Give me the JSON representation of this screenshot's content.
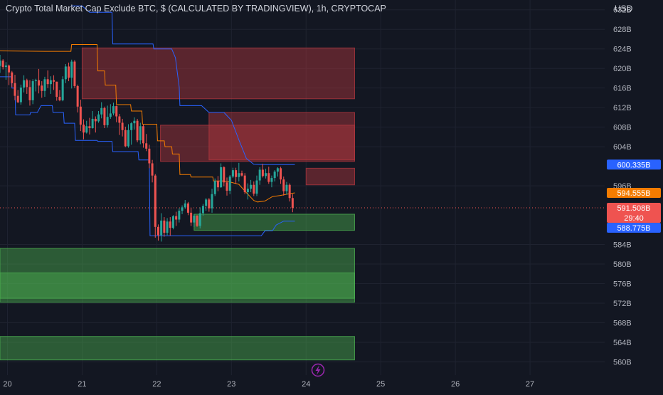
{
  "header": {
    "title": "Crypto Total Market Cap Exclude BTC, $ (CALCULATED BY TRADINGVIEW), 1h, CRYPTOCAP",
    "currency": "USD"
  },
  "colors": {
    "background": "#131722",
    "grid": "#1f2330",
    "bull": "#26a69a",
    "bear": "#ef5350",
    "red_zone": "#b2373f",
    "green_zone": "#4caf50",
    "blue_line": "#2962ff",
    "orange_line": "#f57c00"
  },
  "chart_data": {
    "type": "candlestick",
    "title": "Crypto Total Market Cap Exclude BTC, $ (CALCULATED BY TRADINGVIEW), 1h, CRYPTOCAP",
    "x_tick_labels": [
      "20",
      "21",
      "22",
      "23",
      "24",
      "25",
      "26",
      "27"
    ],
    "x_tick_values": [
      20,
      21,
      22,
      23,
      24,
      25,
      26,
      27
    ],
    "xlim": [
      19.9,
      28.0
    ],
    "y_tick_labels": [
      "632B",
      "628B",
      "624B",
      "620B",
      "616B",
      "612B",
      "608B",
      "604B",
      "596B",
      "584B",
      "580B",
      "576B",
      "572B",
      "568B",
      "564B",
      "560B"
    ],
    "y_tick_values": [
      632,
      628,
      624,
      620,
      616,
      612,
      608,
      604,
      596,
      584,
      580,
      576,
      572,
      568,
      564,
      560
    ],
    "ylim": [
      557.3,
      634.0
    ],
    "price_labels": [
      {
        "label": "600.335B",
        "value": 600.335,
        "color": "#2962ff"
      },
      {
        "label": "594.555B",
        "value": 594.555,
        "color": "#f57c00"
      },
      {
        "label": "591.508B",
        "value": 591.508,
        "color": "#ef5350",
        "countdown": "29:40"
      },
      {
        "label": "588.775B",
        "value": 588.775,
        "color": "#2962ff"
      }
    ],
    "current_price": 591.508,
    "zones": [
      {
        "kind": "supply",
        "x0": 21.0,
        "x1": 24.65,
        "y0": 613.8,
        "y1": 624.2
      },
      {
        "kind": "supply",
        "x0": 22.7,
        "x1": 24.65,
        "y0": 601.3,
        "y1": 611.0
      },
      {
        "kind": "supply",
        "x0": 22.05,
        "x1": 24.65,
        "y0": 601.0,
        "y1": 608.4
      },
      {
        "kind": "supply",
        "x0": 24.0,
        "x1": 24.65,
        "y0": 596.2,
        "y1": 599.6
      },
      {
        "kind": "demand",
        "x0": 22.5,
        "x1": 24.65,
        "y0": 586.9,
        "y1": 590.2
      },
      {
        "kind": "demand",
        "x0": 19.9,
        "x1": 24.65,
        "y0": 572.2,
        "y1": 583.2
      },
      {
        "kind": "demand",
        "x0": 19.9,
        "x1": 24.65,
        "y0": 573.0,
        "y1": 578.2
      },
      {
        "kind": "demand",
        "x0": 19.9,
        "x1": 24.65,
        "y0": 560.4,
        "y1": 565.2
      }
    ],
    "orange_line": [
      [
        19.9,
        623.6
      ],
      [
        20.5,
        623.5
      ],
      [
        20.85,
        623.5
      ],
      [
        20.86,
        624.9
      ],
      [
        21.2,
        624.9
      ],
      [
        21.21,
        619.5
      ],
      [
        21.3,
        619.5
      ],
      [
        21.31,
        616.6
      ],
      [
        21.45,
        616.6
      ],
      [
        21.46,
        612.6
      ],
      [
        21.65,
        612.6
      ],
      [
        21.66,
        611.3
      ],
      [
        21.8,
        611.3
      ],
      [
        21.81,
        608.6
      ],
      [
        22.0,
        608.6
      ],
      [
        22.01,
        605.2
      ],
      [
        22.1,
        605.2
      ],
      [
        22.11,
        604.0
      ],
      [
        22.2,
        604.0
      ],
      [
        22.21,
        602.5
      ],
      [
        22.3,
        602.5
      ],
      [
        22.31,
        598.3
      ],
      [
        22.45,
        598.3
      ],
      [
        22.46,
        597.8
      ],
      [
        22.75,
        597.8
      ],
      [
        22.76,
        597.0
      ],
      [
        22.9,
        597.0
      ],
      [
        23.0,
        596.7
      ],
      [
        23.1,
        596.3
      ],
      [
        23.2,
        594.6
      ],
      [
        23.3,
        593.0
      ],
      [
        23.35,
        592.7
      ],
      [
        23.45,
        592.9
      ],
      [
        23.55,
        593.8
      ],
      [
        23.65,
        594.0
      ],
      [
        23.75,
        594.3
      ],
      [
        23.85,
        594.555
      ]
    ],
    "blue_line": [
      [
        19.9,
        618.3
      ],
      [
        20.05,
        618.3
      ],
      [
        20.06,
        616.0
      ],
      [
        20.1,
        616.0
      ],
      [
        20.11,
        610.5
      ],
      [
        20.3,
        610.5
      ],
      [
        20.31,
        611.0
      ],
      [
        20.4,
        611.0
      ],
      [
        20.45,
        612.4
      ],
      [
        20.6,
        612.4
      ],
      [
        20.61,
        611.0
      ],
      [
        20.75,
        611.0
      ],
      [
        20.76,
        608.8
      ],
      [
        20.9,
        608.8
      ],
      [
        20.91,
        605.3
      ],
      [
        21.2,
        605.3
      ],
      [
        21.21,
        605.1
      ],
      [
        21.4,
        605.1
      ],
      [
        21.41,
        603.0
      ],
      [
        21.75,
        603.0
      ],
      [
        21.76,
        601.3
      ],
      [
        21.9,
        601.3
      ],
      [
        21.91,
        585.8
      ],
      [
        22.4,
        585.8
      ],
      [
        22.6,
        585.8
      ],
      [
        23.4,
        585.8
      ],
      [
        23.45,
        586.8
      ],
      [
        23.55,
        586.8
      ],
      [
        23.6,
        588.0
      ],
      [
        23.7,
        588.775
      ],
      [
        23.85,
        588.775
      ]
    ],
    "blue_upper_line": [
      [
        20.85,
        632.8
      ],
      [
        21.0,
        632.8
      ],
      [
        21.1,
        631.5
      ],
      [
        21.4,
        631.5
      ],
      [
        21.41,
        625.0
      ],
      [
        21.95,
        625.0
      ],
      [
        21.96,
        624.0
      ],
      [
        22.2,
        624.0
      ],
      [
        22.25,
        622.2
      ],
      [
        22.3,
        616.2
      ],
      [
        22.31,
        612.4
      ],
      [
        22.6,
        612.4
      ],
      [
        22.7,
        611.0
      ],
      [
        22.9,
        611.0
      ],
      [
        23.0,
        609.4
      ],
      [
        23.1,
        605.4
      ],
      [
        23.2,
        601.6
      ],
      [
        23.3,
        600.4
      ],
      [
        23.45,
        600.335
      ],
      [
        23.85,
        600.335
      ]
    ],
    "candles": [
      [
        19.9,
        620.5,
        622.8,
        619.1,
        621.6
      ],
      [
        19.94,
        621.6,
        621.9,
        619.8,
        620.3
      ],
      [
        19.98,
        620.3,
        621.3,
        617.7,
        620.6
      ],
      [
        20.02,
        620.6,
        620.8,
        616.6,
        619.2
      ],
      [
        20.06,
        619.2,
        619.5,
        616.2,
        617.0
      ],
      [
        20.1,
        617.0,
        618.7,
        613.5,
        614.4
      ],
      [
        20.14,
        614.4,
        615.6,
        612.9,
        613.1
      ],
      [
        20.18,
        613.1,
        616.7,
        612.6,
        616.1
      ],
      [
        20.22,
        616.1,
        618.6,
        615.1,
        617.6
      ],
      [
        20.26,
        617.6,
        617.9,
        614.8,
        616.2
      ],
      [
        20.3,
        616.2,
        617.6,
        612.4,
        613.5
      ],
      [
        20.34,
        613.5,
        617.8,
        612.7,
        617.4
      ],
      [
        20.38,
        617.4,
        617.9,
        615.3,
        617.6
      ],
      [
        20.42,
        617.6,
        619.9,
        614.9,
        616.5
      ],
      [
        20.46,
        616.5,
        617.4,
        614.0,
        615.4
      ],
      [
        20.5,
        615.4,
        618.3,
        614.2,
        617.8
      ],
      [
        20.54,
        617.8,
        619.6,
        616.0,
        616.8
      ],
      [
        20.58,
        616.8,
        618.4,
        614.8,
        617.6
      ],
      [
        20.62,
        617.6,
        618.6,
        615.6,
        617.3
      ],
      [
        20.66,
        617.3,
        617.3,
        613.4,
        614.2
      ],
      [
        20.7,
        614.2,
        615.6,
        613.3,
        613.5
      ],
      [
        20.74,
        613.5,
        618.4,
        613.3,
        617.8
      ],
      [
        20.78,
        617.8,
        620.9,
        617.0,
        620.4
      ],
      [
        20.82,
        620.4,
        621.2,
        617.4,
        618.1
      ],
      [
        20.86,
        618.1,
        621.8,
        615.9,
        621.4
      ],
      [
        20.9,
        621.4,
        621.7,
        616.0,
        616.4
      ],
      [
        20.94,
        616.4,
        616.7,
        611.0,
        612.2
      ],
      [
        20.98,
        612.2,
        613.6,
        607.2,
        608.5
      ],
      [
        21.02,
        608.5,
        609.6,
        605.5,
        606.9
      ],
      [
        21.06,
        606.9,
        609.3,
        606.7,
        608.2
      ],
      [
        21.1,
        608.2,
        609.9,
        606.5,
        607.8
      ],
      [
        21.14,
        607.8,
        611.3,
        607.7,
        609.7
      ],
      [
        21.18,
        609.7,
        610.2,
        606.9,
        609.2
      ],
      [
        21.22,
        609.2,
        611.3,
        608.9,
        610.6
      ],
      [
        21.26,
        610.6,
        613.1,
        609.8,
        611.9
      ],
      [
        21.3,
        611.9,
        612.2,
        607.8,
        608.4
      ],
      [
        21.34,
        608.4,
        612.4,
        607.9,
        610.1
      ],
      [
        21.38,
        610.1,
        612.7,
        609.7,
        610.8
      ],
      [
        21.42,
        610.8,
        613.0,
        610.4,
        612.3
      ],
      [
        21.46,
        612.3,
        612.4,
        609.0,
        610.2
      ],
      [
        21.5,
        610.2,
        610.7,
        606.4,
        608.9
      ],
      [
        21.54,
        608.9,
        609.7,
        606.1,
        607.4
      ],
      [
        21.58,
        607.4,
        608.1,
        603.9,
        604.1
      ],
      [
        21.62,
        604.1,
        608.6,
        603.8,
        607.4
      ],
      [
        21.66,
        607.4,
        609.0,
        604.4,
        608.8
      ],
      [
        21.7,
        608.8,
        610.0,
        607.5,
        609.3
      ],
      [
        21.74,
        609.3,
        609.7,
        604.9,
        605.3
      ],
      [
        21.78,
        605.3,
        608.9,
        604.5,
        608.2
      ],
      [
        21.82,
        608.2,
        608.5,
        603.8,
        604.7
      ],
      [
        21.86,
        604.7,
        606.6,
        603.1,
        603.6
      ],
      [
        21.9,
        603.6,
        604.4,
        599.6,
        600.6
      ],
      [
        21.94,
        600.6,
        601.3,
        596.7,
        598.1
      ],
      [
        21.98,
        598.1,
        598.4,
        585.4,
        587.6
      ],
      [
        22.02,
        587.6,
        588.1,
        584.8,
        585.9
      ],
      [
        22.06,
        585.9,
        590.4,
        584.6,
        588.9
      ],
      [
        22.1,
        588.9,
        589.6,
        585.6,
        586.4
      ],
      [
        22.14,
        586.4,
        589.4,
        585.9,
        588.7
      ],
      [
        22.18,
        588.7,
        589.6,
        585.8,
        587.4
      ],
      [
        22.22,
        587.4,
        590.0,
        587.1,
        589.8
      ],
      [
        22.26,
        589.8,
        590.7,
        587.8,
        589.1
      ],
      [
        22.3,
        589.1,
        591.4,
        588.5,
        590.9
      ],
      [
        22.34,
        590.9,
        592.0,
        590.2,
        591.6
      ],
      [
        22.38,
        591.6,
        593.1,
        591.3,
        592.4
      ],
      [
        22.42,
        592.4,
        592.7,
        590.0,
        590.5
      ],
      [
        22.46,
        590.5,
        591.5,
        587.8,
        588.5
      ],
      [
        22.5,
        588.5,
        590.2,
        587.6,
        589.9
      ],
      [
        22.54,
        589.9,
        590.0,
        587.6,
        587.8
      ],
      [
        22.58,
        587.8,
        591.6,
        587.3,
        590.4
      ],
      [
        22.62,
        590.4,
        592.3,
        589.9,
        591.9
      ],
      [
        22.66,
        591.9,
        593.5,
        590.9,
        593.2
      ],
      [
        22.7,
        593.2,
        593.5,
        590.7,
        591.4
      ],
      [
        22.74,
        591.4,
        595.4,
        590.5,
        594.3
      ],
      [
        22.78,
        594.3,
        597.5,
        593.9,
        597.0
      ],
      [
        22.82,
        597.0,
        598.0,
        594.9,
        595.7
      ],
      [
        22.86,
        595.7,
        600.6,
        595.6,
        599.8
      ],
      [
        22.9,
        599.8,
        600.0,
        595.9,
        596.7
      ],
      [
        22.94,
        596.7,
        597.7,
        594.0,
        595.0
      ],
      [
        22.98,
        595.0,
        598.2,
        594.3,
        597.9
      ],
      [
        23.02,
        597.9,
        599.7,
        597.6,
        599.2
      ],
      [
        23.06,
        599.2,
        599.7,
        596.4,
        597.8
      ],
      [
        23.1,
        597.8,
        600.7,
        596.9,
        598.6
      ],
      [
        23.14,
        598.6,
        599.1,
        597.9,
        598.1
      ],
      [
        23.18,
        598.1,
        598.6,
        594.3,
        594.7
      ],
      [
        23.22,
        594.7,
        596.5,
        593.2,
        595.4
      ],
      [
        23.26,
        595.4,
        597.2,
        594.7,
        596.2
      ],
      [
        23.3,
        596.2,
        596.9,
        593.9,
        594.4
      ],
      [
        23.34,
        594.4,
        598.1,
        593.9,
        597.1
      ],
      [
        23.38,
        597.1,
        599.8,
        596.2,
        599.3
      ],
      [
        23.42,
        599.3,
        600.5,
        597.7,
        598.0
      ],
      [
        23.46,
        598.0,
        599.5,
        597.5,
        598.6
      ],
      [
        23.5,
        598.6,
        599.9,
        596.4,
        596.8
      ],
      [
        23.54,
        596.8,
        598.1,
        595.7,
        597.6
      ],
      [
        23.58,
        597.6,
        599.2,
        596.9,
        598.9
      ],
      [
        23.62,
        598.9,
        599.8,
        597.9,
        599.6
      ],
      [
        23.66,
        599.6,
        599.9,
        596.4,
        597.3
      ],
      [
        23.7,
        597.3,
        597.9,
        594.0,
        594.9
      ],
      [
        23.74,
        594.9,
        596.8,
        594.2,
        596.2
      ],
      [
        23.78,
        596.2,
        596.5,
        592.8,
        593.5
      ],
      [
        23.82,
        593.5,
        594.3,
        590.6,
        591.508
      ]
    ]
  }
}
